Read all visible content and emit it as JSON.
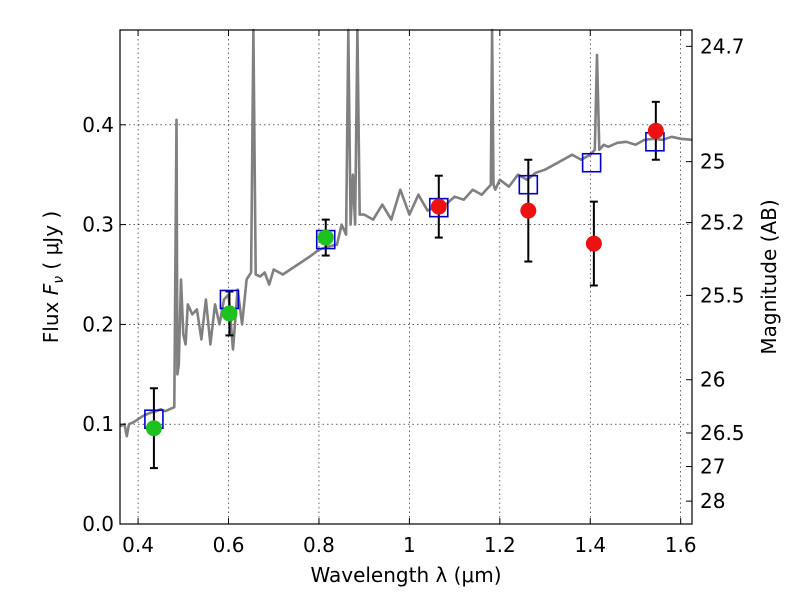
{
  "chart_data": {
    "type": "scatter",
    "xlabel": "Wavelength  λ (μm)",
    "ylabel": "Flux  F_ν  ( μJy )",
    "ylabel_parts": {
      "pre": "Flux  ",
      "F": "F",
      "nu": "ν",
      "post": "  ( μJy )"
    },
    "ylabel_right": "Magnitude (AB)",
    "xlim": [
      0.36,
      1.625
    ],
    "ylim": [
      0.0,
      0.495
    ],
    "x_ticks": [
      0.4,
      0.6,
      0.8,
      1.0,
      1.2,
      1.4,
      1.6
    ],
    "x_tick_labels": [
      "0.4",
      "0.6",
      "0.8",
      "1",
      "1.2",
      "1.4",
      "1.6"
    ],
    "y_ticks": [
      0.0,
      0.1,
      0.2,
      0.3,
      0.4
    ],
    "y_tick_labels": [
      "0.0",
      "0.1",
      "0.2",
      "0.3",
      "0.4"
    ],
    "right_ticks": [
      {
        "label": "24.7",
        "mag": 24.7
      },
      {
        "label": "25",
        "mag": 25.0
      },
      {
        "label": "25.2",
        "mag": 25.2
      },
      {
        "label": "25.5",
        "mag": 25.5
      },
      {
        "label": "26",
        "mag": 26.0
      },
      {
        "label": "26.5",
        "mag": 26.5
      },
      {
        "label": "27",
        "mag": 27.0
      },
      {
        "label": "28",
        "mag": 28.0
      }
    ],
    "grid": true,
    "colors": {
      "spectrum": "#808080",
      "model_boxes": "#0000cc",
      "green_points": "#1ec21e",
      "red_points": "#ee1111",
      "errorbar": "#000000"
    },
    "spectrum": {
      "x": [
        0.36,
        0.37,
        0.375,
        0.38,
        0.39,
        0.4,
        0.41,
        0.42,
        0.43,
        0.44,
        0.45,
        0.46,
        0.47,
        0.48,
        0.485,
        0.487,
        0.49,
        0.495,
        0.5,
        0.505,
        0.51,
        0.52,
        0.53,
        0.54,
        0.55,
        0.56,
        0.57,
        0.58,
        0.59,
        0.6,
        0.61,
        0.62,
        0.63,
        0.64,
        0.65,
        0.655,
        0.66,
        0.67,
        0.68,
        0.69,
        0.7,
        0.72,
        0.74,
        0.76,
        0.78,
        0.8,
        0.82,
        0.84,
        0.85,
        0.86,
        0.865,
        0.87,
        0.875,
        0.88,
        0.885,
        0.89,
        0.9,
        0.92,
        0.94,
        0.96,
        0.98,
        1.0,
        1.02,
        1.04,
        1.06,
        1.08,
        1.1,
        1.12,
        1.14,
        1.16,
        1.18,
        1.183,
        1.186,
        1.19,
        1.2,
        1.22,
        1.24,
        1.26,
        1.28,
        1.3,
        1.32,
        1.34,
        1.36,
        1.38,
        1.4,
        1.41,
        1.415,
        1.42,
        1.43,
        1.44,
        1.46,
        1.48,
        1.5,
        1.52,
        1.54,
        1.56,
        1.58,
        1.6,
        1.625
      ],
      "y": [
        0.098,
        0.1,
        0.088,
        0.1,
        0.102,
        0.105,
        0.108,
        0.11,
        0.112,
        0.113,
        0.115,
        0.113,
        0.115,
        0.117,
        0.405,
        0.15,
        0.16,
        0.245,
        0.19,
        0.18,
        0.22,
        0.21,
        0.215,
        0.185,
        0.225,
        0.18,
        0.22,
        0.2,
        0.225,
        0.23,
        0.175,
        0.235,
        0.2,
        0.245,
        0.252,
        0.495,
        0.25,
        0.248,
        0.252,
        0.24,
        0.255,
        0.25,
        0.256,
        0.262,
        0.268,
        0.275,
        0.278,
        0.28,
        0.3,
        0.29,
        0.495,
        0.3,
        0.35,
        0.3,
        0.495,
        0.31,
        0.31,
        0.305,
        0.32,
        0.305,
        0.335,
        0.31,
        0.33,
        0.314,
        0.318,
        0.32,
        0.328,
        0.325,
        0.335,
        0.33,
        0.34,
        0.495,
        0.34,
        0.335,
        0.345,
        0.338,
        0.35,
        0.345,
        0.352,
        0.355,
        0.36,
        0.365,
        0.37,
        0.365,
        0.37,
        0.375,
        0.47,
        0.375,
        0.38,
        0.378,
        0.382,
        0.383,
        0.38,
        0.385,
        0.386,
        0.385,
        0.388,
        0.386,
        0.385
      ]
    },
    "model_boxes": {
      "x": [
        0.435,
        0.602,
        0.815,
        1.065,
        1.263,
        1.403,
        1.543
      ],
      "y": [
        0.105,
        0.225,
        0.285,
        0.317,
        0.34,
        0.362,
        0.383
      ]
    },
    "observed_green": {
      "x": [
        0.435,
        0.602,
        0.815
      ],
      "y": [
        0.096,
        0.211,
        0.287
      ],
      "yerr": [
        0.04,
        0.022,
        0.018
      ]
    },
    "observed_red": {
      "x": [
        1.065,
        1.263,
        1.408,
        1.545
      ],
      "y": [
        0.318,
        0.314,
        0.281,
        0.394
      ],
      "yerr": [
        0.031,
        0.051,
        0.042,
        0.029
      ]
    }
  }
}
